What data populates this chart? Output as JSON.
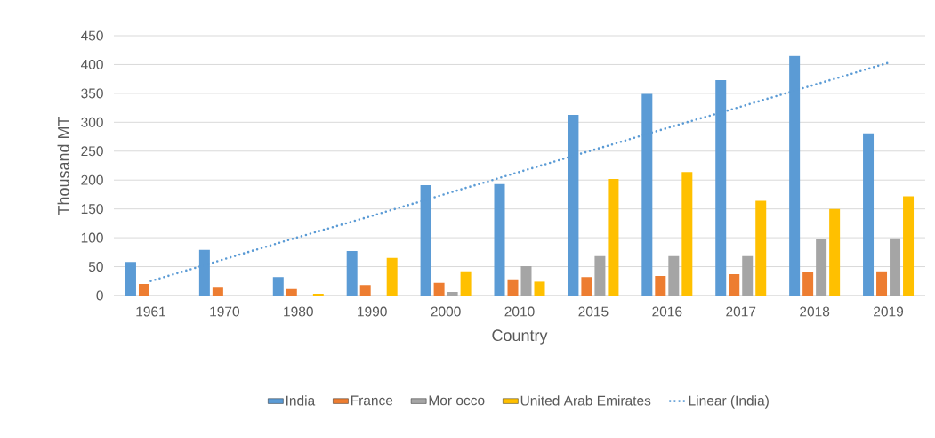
{
  "chart_data": {
    "type": "bar",
    "xlabel": "Country",
    "ylabel": "Thousand MT",
    "categories": [
      "1961",
      "1970",
      "1980",
      "1990",
      "2000",
      "2010",
      "2015",
      "2016",
      "2017",
      "2018",
      "2019"
    ],
    "series": [
      {
        "name": "India",
        "color": "#5b9bd5",
        "values": [
          58,
          79,
          32,
          77,
          191,
          193,
          313,
          349,
          373,
          415,
          281
        ]
      },
      {
        "name": "France",
        "color": "#ed7d31",
        "values": [
          20,
          15,
          11,
          18,
          22,
          28,
          32,
          34,
          37,
          41,
          42
        ]
      },
      {
        "name": "Mor occo",
        "color": "#a5a5a5",
        "values": [
          null,
          null,
          null,
          null,
          6,
          51,
          68,
          68,
          68,
          98,
          99
        ]
      },
      {
        "name": "United Arab Emirates",
        "color": "#ffc000",
        "values": [
          null,
          null,
          3,
          65,
          42,
          24,
          202,
          214,
          164,
          150,
          172
        ]
      },
      {
        "name": "Linear (India)",
        "type": "line",
        "line_style": "dotted",
        "color": "#5b9bd5",
        "values": [
          25,
          63,
          101,
          138,
          176,
          214,
          252,
          290,
          327,
          365,
          403
        ]
      }
    ],
    "ylim": [
      0,
      450
    ],
    "yticks": [
      0,
      50,
      100,
      150,
      200,
      250,
      300,
      350,
      400,
      450
    ],
    "grid": "y",
    "legend": "bottom"
  }
}
